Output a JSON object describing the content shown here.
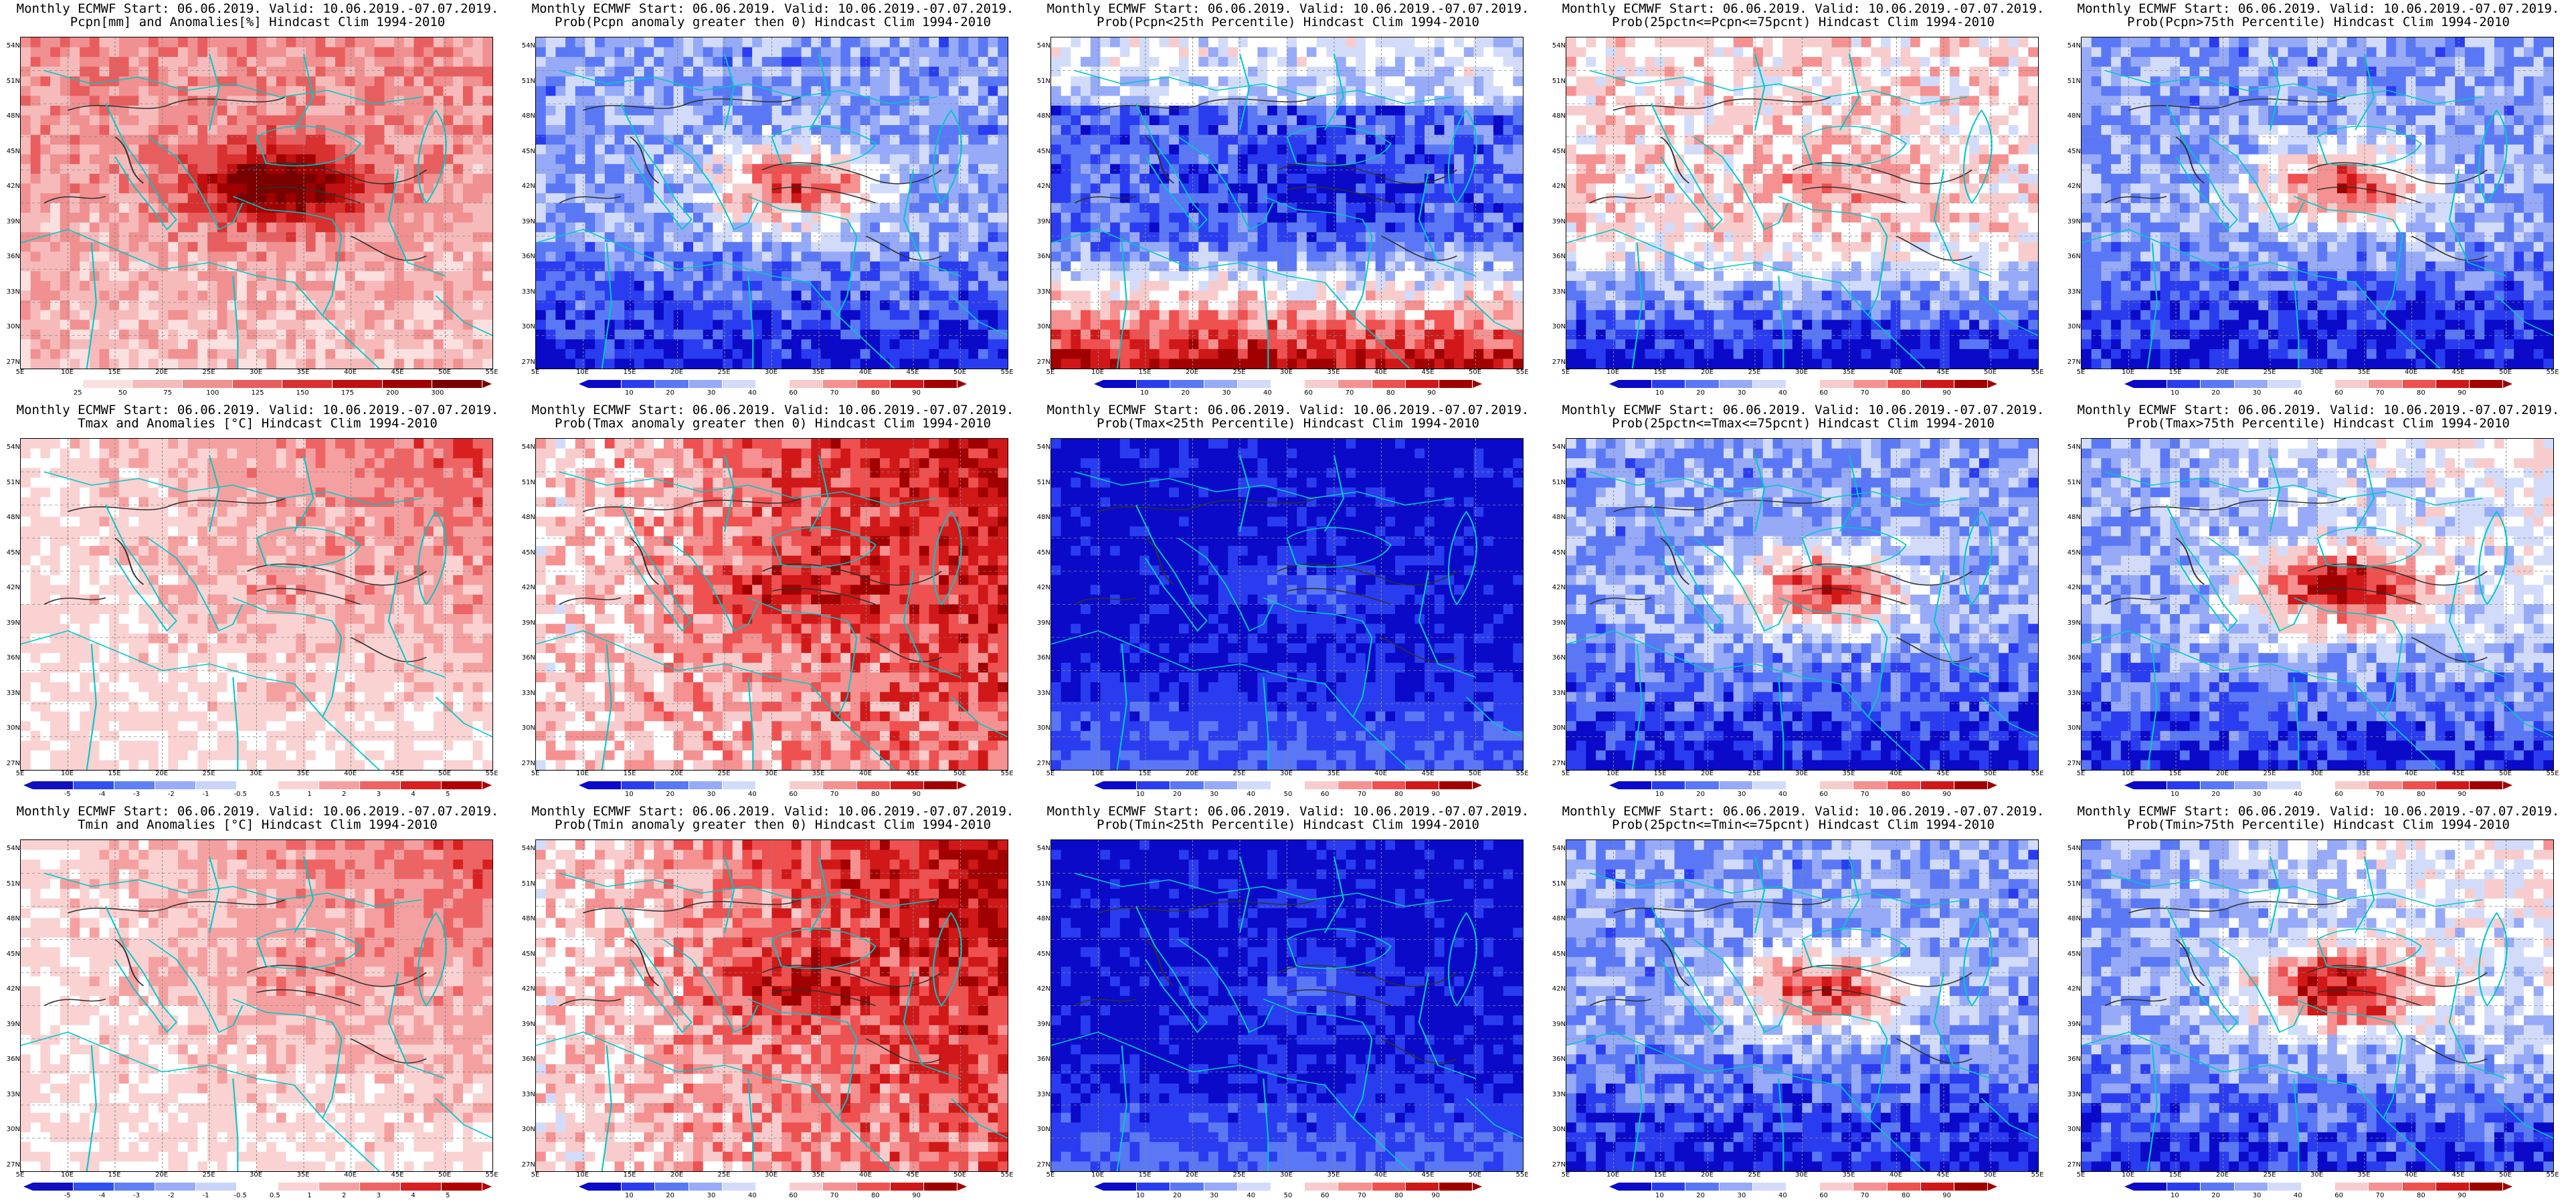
{
  "panels": [
    {
      "title1": "Monthly ECMWF Start: 06.06.2019. Valid: 10.06.2019.-07.07.2019.",
      "title2": "Pcpn[mm] and Anomalies[%] Hindcast Clim 1994-2010",
      "kind": "pcpn",
      "cbar_labels": [
        "25",
        "50",
        "75",
        "100",
        "125",
        "150",
        "175",
        "200",
        "300"
      ]
    },
    {
      "title1": "Monthly ECMWF Start: 06.06.2019. Valid: 10.06.2019.-07.07.2019.",
      "title2": "Prob(Pcpn anomaly greater then 0) Hindcast Clim 1994-2010",
      "kind": "prob_mixed",
      "cbar_labels": [
        "10",
        "20",
        "30",
        "40",
        "60",
        "70",
        "80",
        "90"
      ]
    },
    {
      "title1": "Monthly ECMWF Start: 06.06.2019. Valid: 10.06.2019.-07.07.2019.",
      "title2": "Prob(Pcpn<25th Percentile) Hindcast Clim 1994-2010",
      "kind": "prob_blue_top_red_south",
      "cbar_labels": [
        "10",
        "20",
        "30",
        "40",
        "60",
        "70",
        "80",
        "90"
      ]
    },
    {
      "title1": "Monthly ECMWF Start: 06.06.2019. Valid: 10.06.2019.-07.07.2019.",
      "title2": "Prob(25pctn<=Pcpn<=75pcnt) Hindcast Clim 1994-2010",
      "kind": "prob_white_top_blue_south",
      "cbar_labels": [
        "10",
        "20",
        "30",
        "40",
        "60",
        "70",
        "80",
        "90"
      ]
    },
    {
      "title1": "Monthly ECMWF Start: 06.06.2019. Valid: 10.06.2019.-07.07.2019.",
      "title2": "Prob(Pcpn>75th Percentile) Hindcast Clim 1994-2010",
      "kind": "prob_mixed",
      "cbar_labels": [
        "10",
        "20",
        "30",
        "40",
        "60",
        "70",
        "80",
        "90"
      ]
    },
    {
      "title1": "Monthly ECMWF Start: 06.06.2019. Valid: 10.06.2019.-07.07.2019.",
      "title2": "Tmax and Anomalies [°C] Hindcast Clim 1994-2010",
      "kind": "anom_light",
      "cbar_labels": [
        "-5",
        "-4",
        "-3",
        "-2",
        "-1",
        "-0.5",
        "0.5",
        "1",
        "2",
        "3",
        "4",
        "5"
      ]
    },
    {
      "title1": "Monthly ECMWF Start: 06.06.2019. Valid: 10.06.2019.-07.07.2019.",
      "title2": "Prob(Tmax anomaly greater then 0) Hindcast Clim 1994-2010",
      "kind": "prob_red",
      "cbar_labels": [
        "10",
        "20",
        "30",
        "40",
        "60",
        "70",
        "80",
        "90"
      ]
    },
    {
      "title1": "Monthly ECMWF Start: 06.06.2019. Valid: 10.06.2019.-07.07.2019.",
      "title2": "Prob(Tmax<25th Percentile) Hindcast Clim 1994-2010",
      "kind": "prob_blue",
      "cbar_labels": [
        "10",
        "20",
        "30",
        "40",
        "50",
        "60",
        "70",
        "80",
        "90"
      ]
    },
    {
      "title1": "Monthly ECMWF Start: 06.06.2019. Valid: 10.06.2019.-07.07.2019.",
      "title2": "Prob(25pctn<=Tmax<=75pcnt) Hindcast Clim 1994-2010",
      "kind": "prob_mixed",
      "cbar_labels": [
        "10",
        "20",
        "30",
        "40",
        "60",
        "70",
        "80",
        "90"
      ]
    },
    {
      "title1": "Monthly ECMWF Start: 06.06.2019. Valid: 10.06.2019.-07.07.2019.",
      "title2": "Prob(Tmax>75th Percentile) Hindcast Clim 1994-2010",
      "kind": "prob_red_mixed",
      "cbar_labels": [
        "10",
        "20",
        "30",
        "40",
        "60",
        "70",
        "80",
        "90"
      ]
    },
    {
      "title1": "Monthly ECMWF Start: 06.06.2019. Valid: 10.06.2019.-07.07.2019.",
      "title2": "Tmin and Anomalies [°C] Hindcast Clim 1994-2010",
      "kind": "anom_light",
      "cbar_labels": [
        "-5",
        "-4",
        "-3",
        "-2",
        "-1",
        "-0.5",
        "0.5",
        "1",
        "2",
        "3",
        "4",
        "5"
      ]
    },
    {
      "title1": "Monthly ECMWF Start: 06.06.2019. Valid: 10.06.2019.-07.07.2019.",
      "title2": "Prob(Tmin anomaly greater then 0) Hindcast Clim 1994-2010",
      "kind": "prob_red",
      "cbar_labels": [
        "10",
        "20",
        "30",
        "40",
        "60",
        "70",
        "80",
        "90"
      ]
    },
    {
      "title1": "Monthly ECMWF Start: 06.06.2019. Valid: 10.06.2019.-07.07.2019.",
      "title2": "Prob(Tmin<25th Percentile) Hindcast Clim 1994-2010",
      "kind": "prob_blue",
      "cbar_labels": [
        "10",
        "20",
        "30",
        "40",
        "50",
        "60",
        "70",
        "80",
        "90"
      ]
    },
    {
      "title1": "Monthly ECMWF Start: 06.06.2019. Valid: 10.06.2019.-07.07.2019.",
      "title2": "Prob(25pctn<=Tmin<=75pcnt) Hindcast Clim 1994-2010",
      "kind": "prob_mixed",
      "cbar_labels": [
        "10",
        "20",
        "30",
        "40",
        "60",
        "70",
        "80",
        "90"
      ]
    },
    {
      "title1": "Monthly ECMWF Start: 06.06.2019. Valid: 10.06.2019.-07.07.2019.",
      "title2": "Prob(Tmin>75th Percentile) Hindcast Clim 1994-2010",
      "kind": "prob_red_mixed",
      "cbar_labels": [
        "10",
        "20",
        "30",
        "40",
        "60",
        "70",
        "80",
        "90"
      ]
    }
  ],
  "lat_labels": [
    "54N",
    "51N",
    "48N",
    "45N",
    "42N",
    "39N",
    "36N",
    "33N",
    "30N",
    "27N"
  ],
  "lon_labels": [
    "5E",
    "10E",
    "15E",
    "20E",
    "25E",
    "30E",
    "35E",
    "40E",
    "45E",
    "50E",
    "55E"
  ],
  "colors": {
    "probability_scale": [
      "#0a0ac8",
      "#2a3cf0",
      "#5a78f5",
      "#96aaf8",
      "#d2dcfa",
      "#ffffff",
      "#f8cccc",
      "#f59191",
      "#ef5050",
      "#d01818",
      "#a00000"
    ],
    "precip_scale": [
      "#ffffff",
      "#fbe0e0",
      "#f6baba",
      "#f09090",
      "#e85e5e",
      "#d93030",
      "#c01010",
      "#a00000",
      "#7a0000"
    ],
    "anomaly_scale": [
      "#1010c0",
      "#3050f0",
      "#6080f5",
      "#98acf8",
      "#c8d4fa",
      "#ffffff",
      "#fad2d2",
      "#f5a0a0",
      "#ee6464",
      "#d92020",
      "#b00000"
    ],
    "coast": "#00c8c8",
    "contour": "#303030"
  }
}
